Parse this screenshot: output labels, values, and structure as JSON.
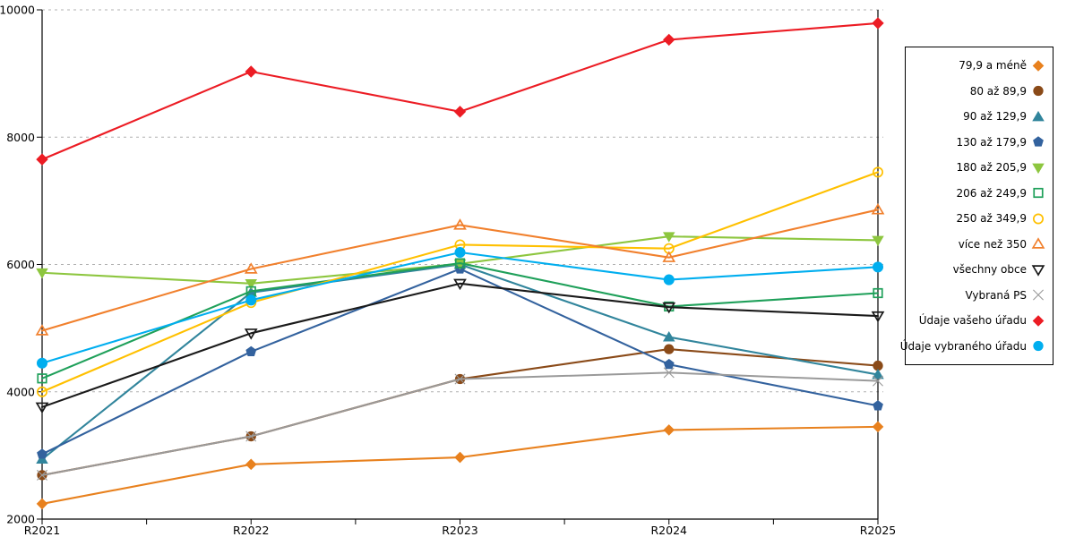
{
  "chart_data": {
    "type": "line",
    "title": "",
    "xlabel": "",
    "ylabel": "",
    "categories": [
      "R2021",
      "R2022",
      "R2023",
      "R2024",
      "R2025"
    ],
    "ylim": [
      2000,
      10000
    ],
    "y_ticks": [
      2000,
      4000,
      6000,
      8000,
      10000
    ],
    "grid": "horizontal-dashed",
    "legend_position": "right",
    "axis_color": "#000000",
    "gridline_color": "#b0b0b0",
    "series": [
      {
        "name": "79,9 a méně",
        "marker": "diamond",
        "filled": true,
        "color": "#e8811e",
        "values": [
          2240,
          2860,
          2970,
          3400,
          3450
        ]
      },
      {
        "name": "80 až 89,9",
        "marker": "circle",
        "filled": true,
        "color": "#8a4a18",
        "values": [
          2690,
          3300,
          4200,
          4670,
          4410
        ]
      },
      {
        "name": "90 až 129,9",
        "marker": "triangle-up",
        "filled": true,
        "color": "#31859c",
        "values": [
          2940,
          5560,
          6000,
          4860,
          4270
        ]
      },
      {
        "name": "130 až 179,9",
        "marker": "pentagon",
        "filled": true,
        "color": "#33629e",
        "values": [
          3020,
          4630,
          5930,
          4430,
          3780
        ]
      },
      {
        "name": "180 až 205,9",
        "marker": "triangle-down",
        "filled": true,
        "color": "#8dc63f",
        "values": [
          5870,
          5700,
          6010,
          6440,
          6380
        ]
      },
      {
        "name": "206 až 249,9",
        "marker": "square",
        "filled": false,
        "color": "#1fa05a",
        "values": [
          4210,
          5580,
          6020,
          5340,
          5550
        ]
      },
      {
        "name": "250 až 349,9",
        "marker": "circle",
        "filled": false,
        "color": "#ffc000",
        "values": [
          4000,
          5400,
          6310,
          6250,
          7450
        ]
      },
      {
        "name": "více než 350",
        "marker": "triangle-up",
        "filled": false,
        "color": "#f1802d",
        "values": [
          4960,
          5930,
          6620,
          6110,
          6860
        ]
      },
      {
        "name": "všechny obce",
        "marker": "triangle-down",
        "filled": false,
        "color": "#1a1a1a",
        "values": [
          3760,
          4920,
          5700,
          5330,
          5190
        ]
      },
      {
        "name": "Vybraná PS",
        "marker": "x",
        "filled": false,
        "color": "#9a9a9a",
        "values": [
          2690,
          3300,
          4200,
          4300,
          4170
        ]
      },
      {
        "name": "Údaje vašeho úřadu",
        "marker": "diamond",
        "filled": true,
        "color": "#ec1c24",
        "values": [
          7650,
          9030,
          8400,
          9530,
          9790
        ]
      },
      {
        "name": "Údaje vybraného úřadu",
        "marker": "circle",
        "filled": true,
        "color": "#00aeef",
        "values": [
          4450,
          5440,
          6190,
          5760,
          5960
        ]
      }
    ]
  }
}
